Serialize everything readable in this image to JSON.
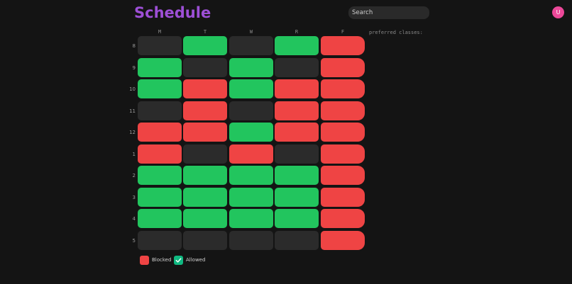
{
  "header": {
    "title": "Schedule",
    "search_placeholder": "Search",
    "avatar_initial": "U"
  },
  "grid": {
    "days": [
      "M",
      "T",
      "W",
      "R",
      "F"
    ],
    "hours": [
      "8",
      "9",
      "10",
      "11",
      "12",
      "1",
      "2",
      "3",
      "4",
      "5"
    ],
    "cells": [
      [
        "empty",
        "allowed",
        "empty",
        "allowed",
        "blocked"
      ],
      [
        "allowed",
        "empty",
        "allowed",
        "empty",
        "blocked"
      ],
      [
        "allowed",
        "blocked",
        "allowed",
        "blocked",
        "blocked"
      ],
      [
        "empty",
        "blocked",
        "empty",
        "blocked",
        "blocked"
      ],
      [
        "blocked",
        "blocked",
        "allowed",
        "blocked",
        "blocked"
      ],
      [
        "blocked",
        "empty",
        "blocked",
        "empty",
        "blocked"
      ],
      [
        "allowed",
        "allowed",
        "allowed",
        "allowed",
        "blocked"
      ],
      [
        "allowed",
        "allowed",
        "allowed",
        "allowed",
        "blocked"
      ],
      [
        "allowed",
        "allowed",
        "allowed",
        "allowed",
        "blocked"
      ],
      [
        "empty",
        "empty",
        "empty",
        "empty",
        "blocked"
      ]
    ]
  },
  "side": {
    "preferred_label": "preferred classes:"
  },
  "legend": {
    "blocked_label": "Blocked",
    "allowed_label": "Allowed"
  },
  "colors": {
    "accent": "#9d4fd6",
    "allowed": "#22c55e",
    "blocked": "#ef4444",
    "empty": "#2b2b2b",
    "avatar": "#ec4899",
    "legend_allowed": "#10b981"
  }
}
